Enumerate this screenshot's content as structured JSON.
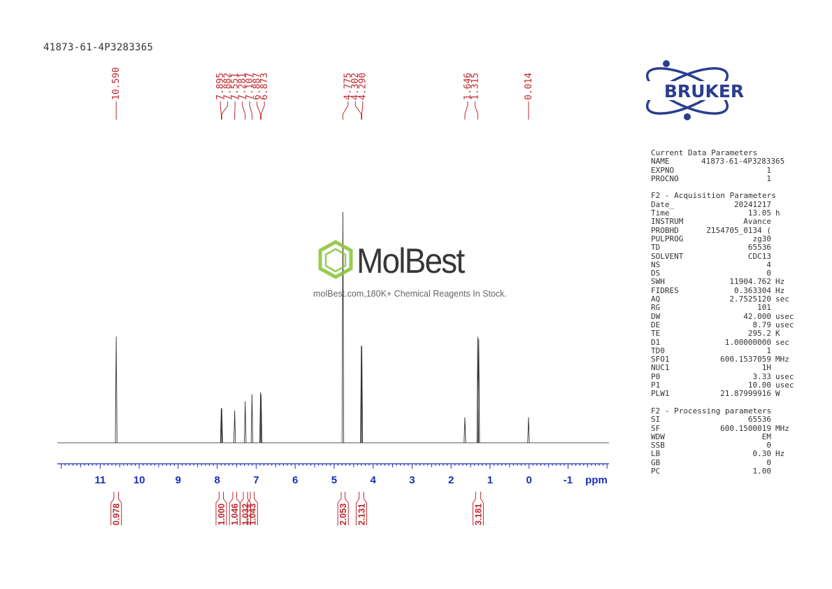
{
  "title": "41873-61-4P3283365",
  "logo": {
    "text": "BRUKER",
    "color": "#2a3e8f"
  },
  "watermark": {
    "brand": "MolBest",
    "tagline": "molBest.com,180K+ Chemical Reagents In Stock.",
    "color": "#8dc63f"
  },
  "chart_data": {
    "type": "line",
    "xlabel": "ppm",
    "xlim": [
      12.1,
      -2.05
    ],
    "x_ticks": [
      "11",
      "10",
      "9",
      "8",
      "7",
      "6",
      "5",
      "4",
      "3",
      "2",
      "1",
      "0",
      "-1"
    ],
    "grid": false,
    "peaks": [
      {
        "ppm": 10.59,
        "height": 0.46
      },
      {
        "ppm": 7.895,
        "height": 0.15
      },
      {
        "ppm": 7.882,
        "height": 0.15
      },
      {
        "ppm": 7.551,
        "height": 0.14
      },
      {
        "ppm": 7.281,
        "height": 0.18
      },
      {
        "ppm": 7.107,
        "height": 0.21
      },
      {
        "ppm": 6.887,
        "height": 0.22
      },
      {
        "ppm": 6.873,
        "height": 0.21
      },
      {
        "ppm": 4.775,
        "height": 1.0
      },
      {
        "ppm": 4.302,
        "height": 0.42
      },
      {
        "ppm": 4.29,
        "height": 0.42
      },
      {
        "ppm": 1.646,
        "height": 0.11
      },
      {
        "ppm": 1.315,
        "height": 0.46
      },
      {
        "ppm": 1.29,
        "height": 0.45
      },
      {
        "ppm": 0.014,
        "height": 0.11
      }
    ],
    "peak_labels": [
      {
        "text": "10.590",
        "ppm": 10.59
      },
      {
        "text": "7.895",
        "ppm": 7.895
      },
      {
        "text": "7.882",
        "ppm": 7.882
      },
      {
        "text": "7.551",
        "ppm": 7.551
      },
      {
        "text": "7.281",
        "ppm": 7.281
      },
      {
        "text": "7.107",
        "ppm": 7.107
      },
      {
        "text": "6.887",
        "ppm": 6.887
      },
      {
        "text": "6.873",
        "ppm": 6.873
      },
      {
        "text": "4.775",
        "ppm": 4.775
      },
      {
        "text": "4.302",
        "ppm": 4.302
      },
      {
        "text": "4.290",
        "ppm": 4.29
      },
      {
        "text": "1.646",
        "ppm": 1.646
      },
      {
        "text": "1.315",
        "ppm": 1.315
      },
      {
        "text": "0.014",
        "ppm": 0.014
      }
    ],
    "integrals": [
      {
        "value": "0.978",
        "from": 10.65,
        "to": 10.53
      },
      {
        "value": "1.000",
        "from": 7.95,
        "to": 7.84
      },
      {
        "value": "1.046",
        "from": 7.6,
        "to": 7.5
      },
      {
        "value": "1.032",
        "from": 7.33,
        "to": 7.22
      },
      {
        "value": "1.043",
        "from": 7.15,
        "to": 7.05
      },
      {
        "value": "2.053",
        "from": 4.82,
        "to": 4.72
      },
      {
        "value": "2.131",
        "from": 4.36,
        "to": 4.24
      },
      {
        "value": "3.181",
        "from": 1.37,
        "to": 1.24
      }
    ]
  },
  "params": {
    "block1_title": "Current Data Parameters",
    "block1": [
      {
        "name": "NAME",
        "value": "41873-61-4P3283365",
        "unit": ""
      },
      {
        "name": "EXPNO",
        "value": "1",
        "unit": ""
      },
      {
        "name": "PROCNO",
        "value": "1",
        "unit": ""
      }
    ],
    "block2_title": "F2 - Acquisition Parameters",
    "block2": [
      {
        "name": "Date_",
        "value": "20241217",
        "unit": ""
      },
      {
        "name": "Time",
        "value": "13.05",
        "unit": "h"
      },
      {
        "name": "INSTRUM",
        "value": "Avance",
        "unit": ""
      },
      {
        "name": "PROBHD",
        "value": "Z154705_0134 (",
        "unit": ""
      },
      {
        "name": "PULPROG",
        "value": "zg30",
        "unit": ""
      },
      {
        "name": "TD",
        "value": "65536",
        "unit": ""
      },
      {
        "name": "SOLVENT",
        "value": "CDC13",
        "unit": ""
      },
      {
        "name": "NS",
        "value": "4",
        "unit": ""
      },
      {
        "name": "DS",
        "value": "0",
        "unit": ""
      },
      {
        "name": "SWH",
        "value": "11904.762",
        "unit": "Hz"
      },
      {
        "name": "FIDRES",
        "value": "0.363304",
        "unit": "Hz"
      },
      {
        "name": "AQ",
        "value": "2.7525120",
        "unit": "sec"
      },
      {
        "name": "RG",
        "value": "101",
        "unit": ""
      },
      {
        "name": "DW",
        "value": "42.000",
        "unit": "usec"
      },
      {
        "name": "DE",
        "value": "8.79",
        "unit": "usec"
      },
      {
        "name": "TE",
        "value": "295.2",
        "unit": "K"
      },
      {
        "name": "D1",
        "value": "1.00000000",
        "unit": "sec"
      },
      {
        "name": "TD0",
        "value": "1",
        "unit": ""
      },
      {
        "name": "SFO1",
        "value": "600.1537059",
        "unit": "MHz"
      },
      {
        "name": "NUC1",
        "value": "1H",
        "unit": ""
      },
      {
        "name": "P0",
        "value": "3.33",
        "unit": "usec"
      },
      {
        "name": "P1",
        "value": "10.00",
        "unit": "usec"
      },
      {
        "name": "PLW1",
        "value": "21.87999916",
        "unit": "W"
      }
    ],
    "block3_title": "F2 - Processing parameters",
    "block3": [
      {
        "name": "SI",
        "value": "65536",
        "unit": ""
      },
      {
        "name": "SF",
        "value": "600.1500019",
        "unit": "MHz"
      },
      {
        "name": "WDW",
        "value": "EM",
        "unit": ""
      },
      {
        "name": "SSB",
        "value": "0",
        "unit": ""
      },
      {
        "name": "LB",
        "value": "0.30",
        "unit": "Hz"
      },
      {
        "name": "GB",
        "value": "0",
        "unit": ""
      },
      {
        "name": "PC",
        "value": "1.00",
        "unit": ""
      }
    ]
  }
}
